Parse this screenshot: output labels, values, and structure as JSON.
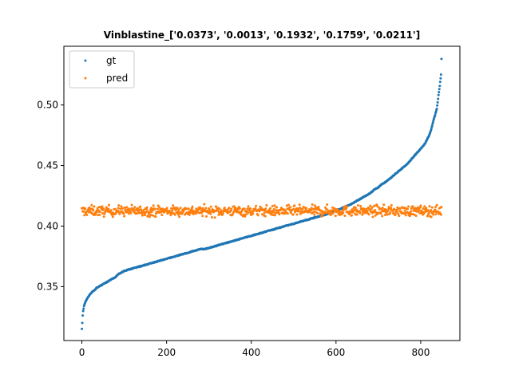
{
  "chart_data": {
    "type": "scatter",
    "title": "Vinblastine_['0.0373', '0.0013', '0.1932', '0.1759', '0.0211']",
    "xlabel": "",
    "ylabel": "",
    "xlim": [
      -42.5,
      892.5
    ],
    "ylim": [
      0.3055,
      0.5485
    ],
    "x_ticks": [
      0,
      200,
      400,
      600,
      800
    ],
    "y_ticks": [
      0.35,
      0.4,
      0.45,
      0.5
    ],
    "x_tick_labels": [
      "0",
      "200",
      "400",
      "600",
      "800"
    ],
    "y_tick_labels": [
      "0.35",
      "0.40",
      "0.45",
      "0.50"
    ],
    "n_points": 850,
    "grid": false,
    "legend_position": "top-left",
    "series": [
      {
        "name": "gt",
        "color": "#1f77b4",
        "marker_size": 1.5,
        "description": "sorted ground-truth values rising monotonically",
        "x": [
          0,
          1,
          2,
          3,
          5,
          8,
          12,
          16,
          20,
          25,
          30,
          35,
          40,
          45,
          50,
          55,
          60,
          65,
          70,
          75,
          80,
          85,
          90,
          95,
          100,
          110,
          120,
          130,
          140,
          150,
          160,
          170,
          180,
          190,
          200,
          210,
          220,
          230,
          240,
          250,
          260,
          270,
          280,
          290,
          300,
          310,
          320,
          330,
          340,
          350,
          360,
          370,
          380,
          390,
          400,
          410,
          420,
          430,
          440,
          450,
          460,
          470,
          480,
          490,
          500,
          510,
          520,
          530,
          540,
          550,
          560,
          570,
          580,
          590,
          600,
          610,
          620,
          630,
          640,
          650,
          660,
          670,
          680,
          690,
          700,
          710,
          720,
          730,
          740,
          750,
          760,
          770,
          780,
          790,
          800,
          810,
          820,
          825,
          830,
          835,
          838,
          840,
          842,
          844,
          846,
          848,
          849
        ],
        "y": [
          0.315,
          0.32,
          0.326,
          0.33,
          0.334,
          0.337,
          0.34,
          0.342,
          0.344,
          0.346,
          0.347,
          0.349,
          0.35,
          0.351,
          0.352,
          0.353,
          0.354,
          0.355,
          0.356,
          0.357,
          0.358,
          0.36,
          0.361,
          0.362,
          0.363,
          0.364,
          0.365,
          0.366,
          0.367,
          0.368,
          0.369,
          0.37,
          0.371,
          0.372,
          0.373,
          0.374,
          0.375,
          0.376,
          0.377,
          0.378,
          0.379,
          0.38,
          0.381,
          0.381,
          0.382,
          0.383,
          0.384,
          0.385,
          0.386,
          0.387,
          0.388,
          0.389,
          0.39,
          0.391,
          0.392,
          0.393,
          0.394,
          0.395,
          0.396,
          0.397,
          0.398,
          0.399,
          0.4,
          0.401,
          0.402,
          0.403,
          0.404,
          0.405,
          0.406,
          0.407,
          0.408,
          0.409,
          0.41,
          0.411,
          0.413,
          0.414,
          0.416,
          0.417,
          0.419,
          0.421,
          0.423,
          0.425,
          0.427,
          0.43,
          0.432,
          0.435,
          0.437,
          0.44,
          0.443,
          0.446,
          0.449,
          0.452,
          0.456,
          0.46,
          0.464,
          0.468,
          0.475,
          0.48,
          0.487,
          0.493,
          0.497,
          0.502,
          0.508,
          0.513,
          0.519,
          0.525,
          0.538
        ]
      },
      {
        "name": "pred",
        "color": "#ff7f0e",
        "marker_size": 1.5,
        "description": "predictions scattered in a flat band around 0.412 (range roughly 0.402-0.426) across all indices",
        "band_center": 0.4125,
        "band_min": 0.402,
        "band_max": 0.426
      }
    ]
  }
}
